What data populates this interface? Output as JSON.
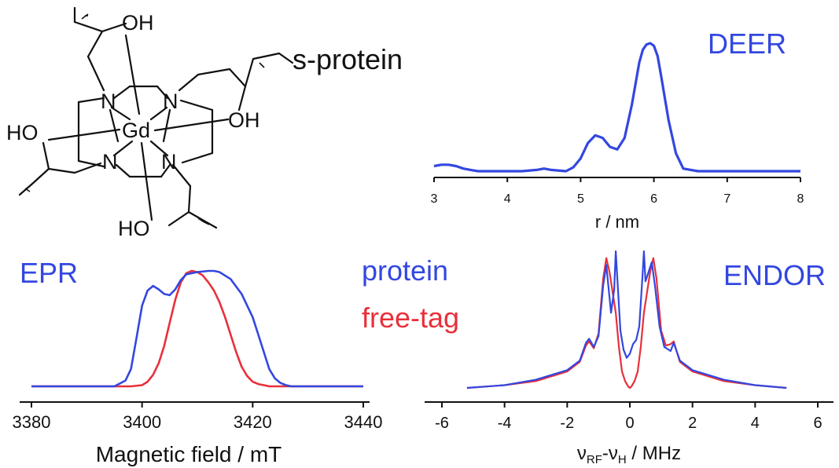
{
  "structure": {
    "atoms": {
      "gd": "Gd",
      "n1": "N",
      "n2": "N",
      "n3": "N",
      "n4": "N",
      "oh_top": "OH",
      "oh_right": "OH",
      "ho_left": "HO",
      "ho_bottom": "HO"
    },
    "substituent": "s-protein"
  },
  "colors": {
    "protein": "#3347e0",
    "free_tag": "#e8303a",
    "axis": "#111111"
  },
  "chart_data": [
    {
      "type": "line",
      "title": "DEER",
      "xlabel": "r / nm",
      "ylabel": "",
      "xlim": [
        3,
        8
      ],
      "xticks": [
        "3",
        "4",
        "5",
        "6",
        "7",
        "8"
      ],
      "grid": false,
      "series": [
        {
          "color": "#3347e0",
          "x": [
            3.0,
            3.1,
            3.2,
            3.3,
            3.4,
            3.5,
            3.6,
            3.8,
            4.0,
            4.2,
            4.4,
            4.5,
            4.6,
            4.8,
            4.9,
            5.0,
            5.1,
            5.2,
            5.3,
            5.4,
            5.5,
            5.6,
            5.7,
            5.8,
            5.85,
            5.9,
            5.95,
            6.0,
            6.05,
            6.1,
            6.2,
            6.3,
            6.4,
            6.6,
            7.0,
            7.5,
            7.8,
            8.0
          ],
          "y": [
            0.04,
            0.05,
            0.05,
            0.04,
            0.02,
            0.01,
            0.0,
            0.0,
            0.0,
            0.0,
            0.01,
            0.02,
            0.01,
            0.0,
            0.03,
            0.1,
            0.22,
            0.28,
            0.26,
            0.19,
            0.17,
            0.26,
            0.52,
            0.85,
            0.95,
            0.99,
            1.0,
            0.98,
            0.9,
            0.74,
            0.4,
            0.14,
            0.02,
            0.0,
            0.0,
            0.0,
            0.0,
            0.0
          ]
        }
      ]
    },
    {
      "type": "line",
      "title": "EPR",
      "xlabel": "Magnetic field / mT",
      "ylabel": "",
      "xlim": [
        3380,
        3440
      ],
      "xticks": [
        "3380",
        "3400",
        "3420",
        "3440"
      ],
      "grid": false,
      "legend": [
        "protein",
        "free-tag"
      ],
      "legend_position": "top-right",
      "series": [
        {
          "name": "protein",
          "color": "#3347e0",
          "x": [
            3380,
            3395,
            3397,
            3398,
            3399,
            3400,
            3401,
            3402,
            3403,
            3404,
            3405,
            3406,
            3407,
            3408,
            3410,
            3412,
            3413,
            3414,
            3416,
            3418,
            3420,
            3421,
            3422,
            3423,
            3424,
            3425,
            3426,
            3427,
            3430,
            3440
          ],
          "y": [
            0.0,
            0.0,
            0.05,
            0.15,
            0.42,
            0.7,
            0.83,
            0.87,
            0.84,
            0.8,
            0.79,
            0.84,
            0.92,
            0.97,
            0.99,
            1.0,
            1.0,
            0.99,
            0.93,
            0.8,
            0.6,
            0.45,
            0.3,
            0.15,
            0.07,
            0.03,
            0.01,
            0.0,
            0.0,
            0.0
          ]
        },
        {
          "name": "free-tag",
          "color": "#e8303a",
          "x": [
            3380,
            3398,
            3400,
            3401,
            3402,
            3403,
            3404,
            3405,
            3406,
            3407,
            3408,
            3409,
            3410,
            3411,
            3412,
            3413,
            3414,
            3415,
            3416,
            3417,
            3418,
            3419,
            3420,
            3421,
            3422,
            3423,
            3424,
            3440
          ],
          "y": [
            0.0,
            0.0,
            0.01,
            0.04,
            0.1,
            0.2,
            0.35,
            0.55,
            0.75,
            0.9,
            0.98,
            1.0,
            0.99,
            0.96,
            0.9,
            0.83,
            0.73,
            0.6,
            0.45,
            0.3,
            0.17,
            0.09,
            0.04,
            0.02,
            0.01,
            0.0,
            0.0,
            0.0
          ]
        }
      ]
    },
    {
      "type": "line",
      "title": "ENDOR",
      "xlabel": "νRF-νH / MHz",
      "xlabel_parts": {
        "nu": "ν",
        "rf": "RF",
        "sep": "-",
        "h": "H",
        "unit": " / MHz"
      },
      "ylabel": "",
      "xlim": [
        -6,
        6
      ],
      "xticks": [
        "-6",
        "-4",
        "-2",
        "0",
        "2",
        "4",
        "6"
      ],
      "grid": false,
      "series": [
        {
          "name": "protein",
          "color": "#3347e0",
          "x": [
            -5.2,
            -4.0,
            -3.0,
            -2.0,
            -1.6,
            -1.4,
            -1.3,
            -1.15,
            -1.0,
            -0.85,
            -0.75,
            -0.7,
            -0.6,
            -0.5,
            -0.45,
            -0.4,
            -0.3,
            -0.2,
            -0.1,
            0.0,
            0.1,
            0.2,
            0.3,
            0.4,
            0.45,
            0.5,
            0.6,
            0.7,
            0.8,
            0.95,
            1.1,
            1.3,
            1.4,
            1.6,
            2.0,
            3.0,
            4.0,
            5.0
          ],
          "y": [
            0.0,
            0.02,
            0.06,
            0.13,
            0.2,
            0.33,
            0.36,
            0.3,
            0.38,
            0.75,
            0.9,
            0.78,
            0.55,
            0.72,
            1.0,
            0.8,
            0.42,
            0.28,
            0.22,
            0.25,
            0.32,
            0.35,
            0.45,
            0.8,
            1.0,
            0.78,
            0.85,
            0.92,
            0.75,
            0.45,
            0.3,
            0.27,
            0.33,
            0.2,
            0.13,
            0.06,
            0.02,
            0.0
          ]
        },
        {
          "name": "free-tag",
          "color": "#e8303a",
          "x": [
            -5.2,
            -4.0,
            -3.0,
            -2.0,
            -1.6,
            -1.4,
            -1.3,
            -1.15,
            -1.0,
            -0.85,
            -0.75,
            -0.65,
            -0.55,
            -0.45,
            -0.35,
            -0.25,
            -0.15,
            -0.05,
            0.0,
            0.05,
            0.15,
            0.25,
            0.35,
            0.45,
            0.55,
            0.65,
            0.75,
            0.85,
            1.0,
            1.15,
            1.3,
            1.4,
            1.6,
            2.0,
            3.0,
            4.0,
            5.0
          ],
          "y": [
            0.0,
            0.02,
            0.05,
            0.12,
            0.19,
            0.31,
            0.34,
            0.29,
            0.4,
            0.8,
            0.95,
            0.85,
            0.7,
            0.55,
            0.3,
            0.12,
            0.05,
            0.01,
            0.0,
            0.01,
            0.05,
            0.12,
            0.3,
            0.55,
            0.7,
            0.85,
            0.95,
            0.8,
            0.42,
            0.31,
            0.32,
            0.34,
            0.19,
            0.12,
            0.05,
            0.02,
            0.0
          ]
        }
      ]
    }
  ]
}
